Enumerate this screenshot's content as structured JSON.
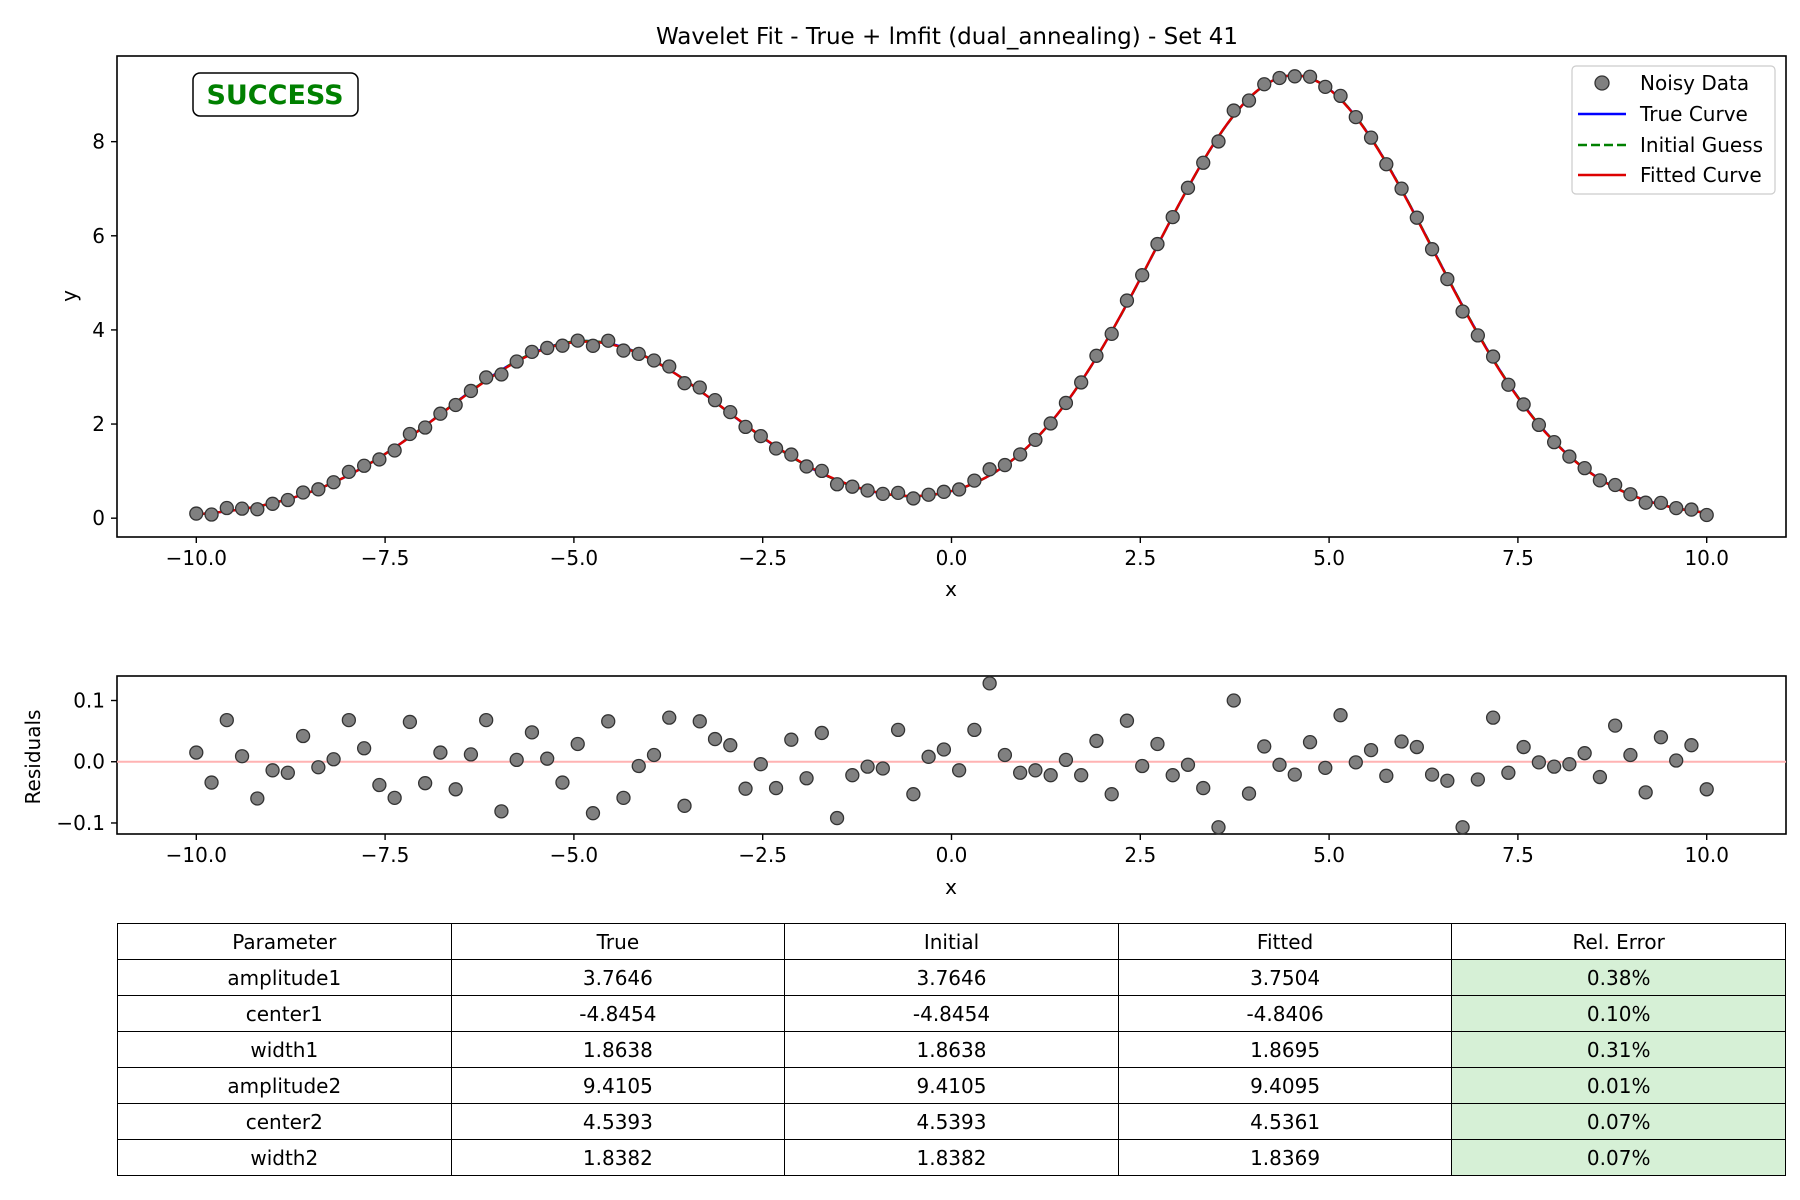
{
  "chart_data": [
    {
      "type": "scatter",
      "title": "Wavelet Fit - True + lmfit (dual_annealing) - Set 41",
      "xlabel": "x",
      "ylabel": "y",
      "xlim": [
        -11.05,
        11.05
      ],
      "ylim": [
        -0.4,
        9.82
      ],
      "xticks": [
        -10.0,
        -7.5,
        -5.0,
        -2.5,
        0.0,
        2.5,
        5.0,
        7.5,
        10.0
      ],
      "xtick_labels": [
        "−10.0",
        "−7.5",
        "−5.0",
        "−2.5",
        "0.0",
        "2.5",
        "5.0",
        "7.5",
        "10.0"
      ],
      "yticks": [
        0,
        2,
        4,
        6,
        8
      ],
      "ytick_labels": [
        "0",
        "2",
        "4",
        "6",
        "8"
      ],
      "grid": false,
      "legend_position": "top-right",
      "status_badge": "SUCCESS",
      "status_color": "#008000",
      "series": [
        {
          "name": "Noisy Data",
          "kind": "points",
          "color": "#808080"
        },
        {
          "name": "True Curve",
          "kind": "line",
          "color": "#0000ff",
          "params": {
            "amplitude1": 3.7646,
            "center1": -4.8454,
            "width1": 1.8638,
            "amplitude2": 9.4105,
            "center2": 4.5393,
            "width2": 1.8382
          }
        },
        {
          "name": "Initial Guess",
          "kind": "dashed-line",
          "color": "#008000",
          "params": {
            "amplitude1": 3.7646,
            "center1": -4.8454,
            "width1": 1.8638,
            "amplitude2": 9.4105,
            "center2": 4.5393,
            "width2": 1.8382
          }
        },
        {
          "name": "Fitted Curve",
          "kind": "line",
          "color": "#dd0000",
          "params": {
            "amplitude1": 3.7504,
            "center1": -4.8406,
            "width1": 1.8695,
            "amplitude2": 9.4095,
            "center2": 4.5361,
            "width2": 1.8369
          }
        }
      ],
      "x_points": {
        "start": -10,
        "stop": 10,
        "count": 100
      },
      "residuals": [
        0.015,
        -0.034,
        0.068,
        0.009,
        -0.06,
        -0.014,
        -0.018,
        0.042,
        -0.009,
        0.004,
        0.068,
        0.022,
        -0.038,
        -0.059,
        0.065,
        -0.035,
        0.015,
        -0.045,
        0.012,
        0.068,
        -0.081,
        0.003,
        0.048,
        0.005,
        -0.034,
        0.029,
        -0.084,
        0.066,
        -0.059,
        -0.007,
        0.011,
        0.072,
        -0.072,
        0.066,
        0.037,
        0.027,
        -0.044,
        -0.004,
        -0.043,
        0.036,
        -0.027,
        0.047,
        -0.092,
        -0.022,
        -0.008,
        -0.011,
        0.052,
        -0.053,
        0.008,
        0.02,
        -0.014,
        0.052,
        0.128,
        0.011,
        -0.018,
        -0.014,
        -0.022,
        0.003,
        -0.022,
        0.034,
        -0.053,
        0.067,
        -0.007,
        0.029,
        -0.022,
        -0.005,
        -0.043,
        -0.107,
        0.1,
        -0.052,
        0.025,
        -0.005,
        -0.021,
        0.032,
        -0.01,
        0.076,
        -0.001,
        0.019,
        -0.023,
        0.033,
        0.024,
        -0.021,
        -0.031,
        -0.107,
        -0.029,
        0.072,
        -0.018,
        0.024,
        -0.001,
        -0.008,
        -0.004,
        0.014,
        -0.025,
        0.059,
        0.011,
        -0.05,
        0.04,
        0.002,
        0.027,
        -0.045
      ]
    },
    {
      "type": "scatter",
      "title": "",
      "xlabel": "x",
      "ylabel": "Residuals",
      "xlim": [
        -11.05,
        11.05
      ],
      "ylim": [
        -0.118,
        0.14
      ],
      "xticks": [
        -10.0,
        -7.5,
        -5.0,
        -2.5,
        0.0,
        2.5,
        5.0,
        7.5,
        10.0
      ],
      "xtick_labels": [
        "−10.0",
        "−7.5",
        "−5.0",
        "−2.5",
        "0.0",
        "2.5",
        "5.0",
        "7.5",
        "10.0"
      ],
      "yticks": [
        -0.1,
        0.0,
        0.1
      ],
      "ytick_labels": [
        "−0.1",
        "0.0",
        "0.1"
      ],
      "grid": false,
      "zero_line_color": "#ffb3b3"
    },
    {
      "type": "table",
      "columns": [
        "Parameter",
        "True",
        "Initial",
        "Fitted",
        "Rel. Error"
      ],
      "rows": [
        [
          "amplitude1",
          "3.7646",
          "3.7646",
          "3.7504",
          "0.38%"
        ],
        [
          "center1",
          "-4.8454",
          "-4.8454",
          "-4.8406",
          "0.10%"
        ],
        [
          "width1",
          "1.8638",
          "1.8638",
          "1.8695",
          "0.31%"
        ],
        [
          "amplitude2",
          "9.4105",
          "9.4105",
          "9.4095",
          "0.01%"
        ],
        [
          "center2",
          "4.5393",
          "4.5393",
          "4.5361",
          "0.07%"
        ],
        [
          "width2",
          "1.8382",
          "1.8382",
          "1.8369",
          "0.07%"
        ]
      ],
      "error_cell_color": "#d6f0d6"
    }
  ]
}
